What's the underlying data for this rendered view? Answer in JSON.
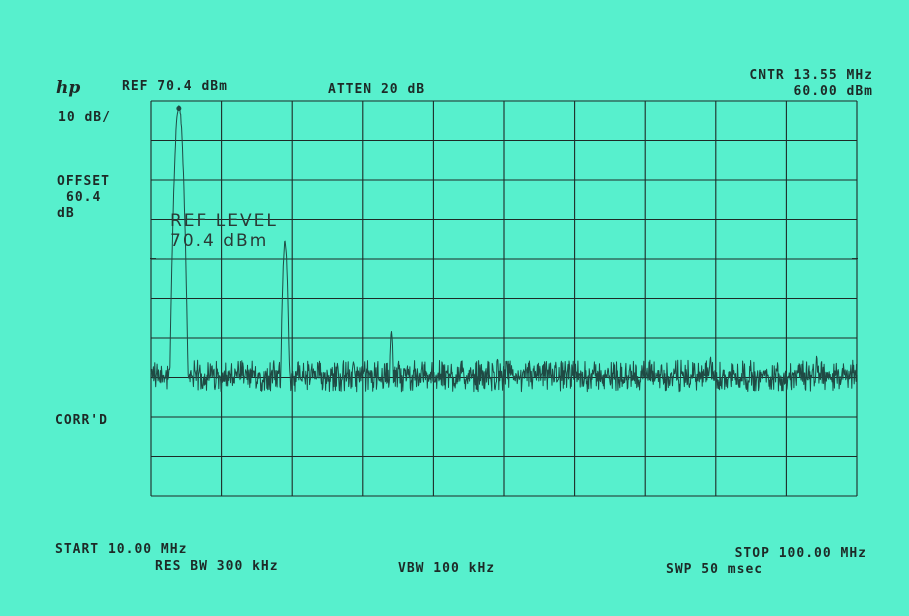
{
  "header": {
    "logo": "hp",
    "ref": "REF 70.4 dBm",
    "atten": "ATTEN 20 dB",
    "center_freq": "CNTR 13.55 MHz",
    "center_level": "60.00 dBm",
    "scale": "10 dB/"
  },
  "side": {
    "offset_label": "OFFSET",
    "offset_value": "60.4",
    "offset_unit": "dB",
    "corrected": "CORR'D"
  },
  "annotation": {
    "line1": "REF LEVEL",
    "line2": "70.4 dBm"
  },
  "footer": {
    "start": "START 10.00 MHz",
    "res_bw": "RES BW 300 kHz",
    "vbw": "VBW 100 kHz",
    "stop": "STOP 100.00 MHz",
    "sweep": "SWP 50 msec"
  },
  "colors": {
    "background": "#57f0cd",
    "trace": "#1f4a44",
    "grid": "#1d2a27"
  },
  "chart_data": {
    "type": "line",
    "xlabel": "",
    "ylabel": "",
    "xlim": [
      10.0,
      100.0
    ],
    "ylim": [
      -29.6,
      70.4
    ],
    "x_unit": "MHz",
    "y_unit": "dBm",
    "divisions": {
      "x": 10,
      "y": 10
    },
    "grid": true,
    "series": [
      {
        "noise_floor": 0.3,
        "noise_band": [
          -3.5,
          4.5
        ],
        "peaks": [
          {
            "x": 13.55,
            "y": 69.0,
            "width": 0.45
          },
          {
            "x": 27.1,
            "y": 34.5,
            "width": 0.3
          },
          {
            "x": 40.65,
            "y": 11.5,
            "width": 0.22
          },
          {
            "x": 54.2,
            "y": 5.0,
            "width": 0.15
          },
          {
            "x": 81.3,
            "y": 6.0,
            "width": 0.18
          },
          {
            "x": 94.85,
            "y": 5.5,
            "width": 0.18
          }
        ]
      }
    ]
  }
}
